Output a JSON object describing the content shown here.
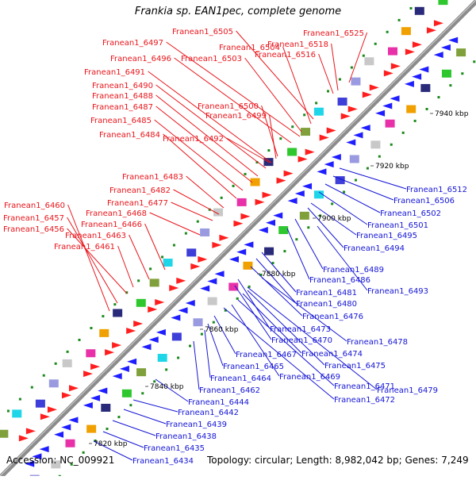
{
  "title": "Frankia sp. EAN1pec, complete genome",
  "footer": {
    "accession": "Accession: NC_009921",
    "summary": "Topology: circular; Length: 8,982,042 bp; Genes: 7,249"
  },
  "colors": {
    "forward_label": "#e8161c",
    "reverse_label": "#1414d6",
    "forward_feature": "#ff1e1e",
    "reverse_feature": "#1e1eff",
    "backbone": "#8c8c8c"
  },
  "ticks": [
    "7820 kbp",
    "7840 kbp",
    "7860 kbp",
    "7880 kbp",
    "7900 kbp",
    "7920 kbp",
    "7940 kbp"
  ],
  "forward_labels": [
    "Franean1_6525",
    "Franean1_6505",
    "Franean1_6518",
    "Franean1_6497",
    "Franean1_6504",
    "Franean1_6516",
    "Franean1_6496",
    "Franean1_6503",
    "Franean1_6491",
    "Franean1_6490",
    "Franean1_6488",
    "Franean1_6500",
    "Franean1_6487",
    "Franean1_6499",
    "Franean1_6485",
    "Franean1_6484",
    "Franean1_6492",
    "Franean1_6483",
    "Franean1_6482",
    "Franean1_6477",
    "Franean1_6460",
    "Franean1_6468",
    "Franean1_6457",
    "Franean1_6466",
    "Franean1_6456",
    "Franean1_6463",
    "Franean1_6461"
  ],
  "reverse_labels": [
    "Franean1_6512",
    "Franean1_6506",
    "Franean1_6502",
    "Franean1_6501",
    "Franean1_6495",
    "Franean1_6494",
    "Franean1_6489",
    "Franean1_6486",
    "Franean1_6493",
    "Franean1_6481",
    "Franean1_6480",
    "Franean1_6476",
    "Franean1_6473",
    "Franean1_6470",
    "Franean1_6478",
    "Franean1_6474",
    "Franean1_6467",
    "Franean1_6475",
    "Franean1_6465",
    "Franean1_6469",
    "Franean1_6464",
    "Franean1_6471",
    "Franean1_6479",
    "Franean1_6462",
    "Franean1_6472",
    "Franean1_6444",
    "Franean1_6442",
    "Franean1_6439",
    "Franean1_6438",
    "Franean1_6435",
    "Franean1_6434"
  ]
}
